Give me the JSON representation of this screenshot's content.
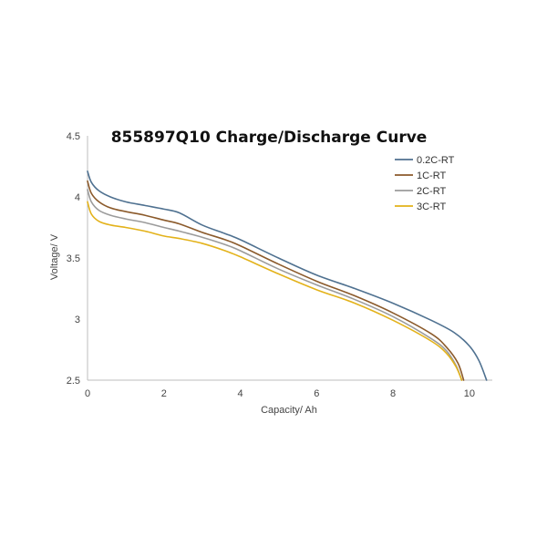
{
  "chart_data": {
    "type": "line",
    "title": "855897Q10 Charge/Discharge Curve",
    "xlabel": "Capacity/ Ah",
    "ylabel": "Voltage/ V",
    "xlim": [
      0,
      10.6
    ],
    "ylim": [
      2.5,
      4.5
    ],
    "xticks": [
      0,
      2,
      4,
      6,
      8,
      10
    ],
    "yticks": [
      2.5,
      3,
      3.5,
      4,
      4.5
    ],
    "grid": false,
    "legend_position": "top-right",
    "series": [
      {
        "name": "0.2C-RT",
        "color": "#4f7190",
        "x": [
          0,
          0.1,
          0.3,
          0.6,
          1.0,
          1.5,
          2.0,
          2.4,
          3.0,
          3.6,
          4.0,
          5.0,
          6.0,
          7.0,
          8.0,
          9.0,
          9.6,
          10.0,
          10.25,
          10.45
        ],
        "y": [
          4.21,
          4.12,
          4.05,
          4.0,
          3.96,
          3.93,
          3.9,
          3.87,
          3.77,
          3.7,
          3.65,
          3.5,
          3.36,
          3.25,
          3.13,
          2.99,
          2.89,
          2.78,
          2.66,
          2.5
        ]
      },
      {
        "name": "1C-RT",
        "color": "#8b5a2b",
        "x": [
          0,
          0.1,
          0.3,
          0.6,
          1.0,
          1.5,
          2.0,
          2.4,
          3.0,
          3.6,
          4.0,
          5.0,
          6.0,
          7.0,
          8.0,
          9.0,
          9.4,
          9.7,
          9.85
        ],
        "y": [
          4.13,
          4.03,
          3.96,
          3.91,
          3.88,
          3.85,
          3.81,
          3.78,
          3.71,
          3.65,
          3.6,
          3.45,
          3.31,
          3.19,
          3.05,
          2.88,
          2.77,
          2.64,
          2.5
        ]
      },
      {
        "name": "2C-RT",
        "color": "#9b9b9b",
        "x": [
          0,
          0.1,
          0.3,
          0.6,
          1.0,
          1.5,
          2.0,
          2.4,
          3.0,
          3.6,
          4.0,
          5.0,
          6.0,
          7.0,
          8.0,
          9.0,
          9.4,
          9.65,
          9.8
        ],
        "y": [
          4.06,
          3.96,
          3.89,
          3.85,
          3.82,
          3.79,
          3.75,
          3.72,
          3.67,
          3.61,
          3.56,
          3.41,
          3.28,
          3.16,
          3.02,
          2.84,
          2.74,
          2.62,
          2.5
        ]
      },
      {
        "name": "3C-RT",
        "color": "#e3b21a",
        "x": [
          0,
          0.1,
          0.3,
          0.6,
          1.0,
          1.5,
          2.0,
          2.4,
          3.0,
          3.6,
          4.0,
          5.0,
          6.0,
          7.0,
          8.0,
          9.0,
          9.4,
          9.65,
          9.8
        ],
        "y": [
          3.96,
          3.86,
          3.8,
          3.77,
          3.75,
          3.72,
          3.68,
          3.66,
          3.62,
          3.56,
          3.51,
          3.37,
          3.24,
          3.13,
          2.99,
          2.82,
          2.72,
          2.61,
          2.5
        ]
      }
    ]
  }
}
